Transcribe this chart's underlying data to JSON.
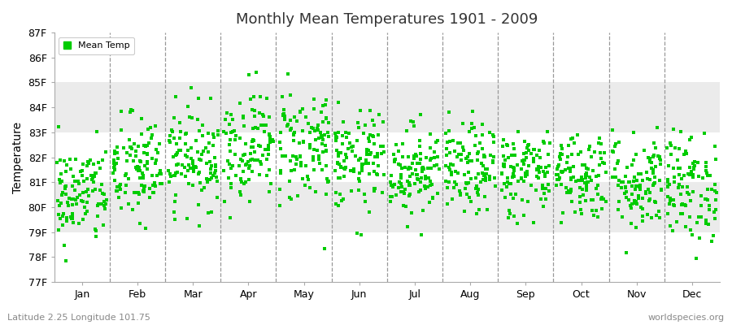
{
  "title": "Monthly Mean Temperatures 1901 - 2009",
  "ylabel": "Temperature",
  "xlabel_labels": [
    "Jan",
    "Feb",
    "Mar",
    "Apr",
    "May",
    "Jun",
    "Jul",
    "Aug",
    "Sep",
    "Oct",
    "Nov",
    "Dec"
  ],
  "y_tick_labels": [
    "77F",
    "78F",
    "79F",
    "80F",
    "81F",
    "82F",
    "83F",
    "84F",
    "85F",
    "86F",
    "87F"
  ],
  "y_tick_values": [
    77,
    78,
    79,
    80,
    81,
    82,
    83,
    84,
    85,
    86,
    87
  ],
  "ylim": [
    77,
    87
  ],
  "dot_color": "#00CC00",
  "dot_size": 7,
  "legend_label": "Mean Temp",
  "subtitle_left": "Latitude 2.25 Longitude 101.75",
  "subtitle_right": "worldspecies.org",
  "bg_color": "#FFFFFF",
  "plot_bg_color": "#FFFFFF",
  "band_colors": [
    "#FFFFFF",
    "#EBEBEB"
  ],
  "n_years": 109,
  "seed": 42,
  "month_means": [
    80.5,
    81.5,
    82.0,
    82.5,
    82.5,
    81.8,
    81.5,
    81.5,
    81.4,
    81.3,
    81.0,
    80.8
  ],
  "month_stds": [
    1.0,
    1.1,
    1.0,
    1.1,
    1.2,
    1.0,
    0.9,
    0.9,
    0.9,
    0.9,
    1.0,
    1.1
  ]
}
